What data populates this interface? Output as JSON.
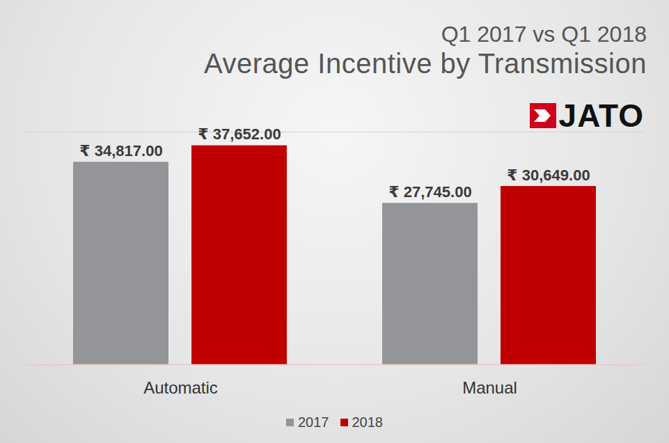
{
  "chart_data": {
    "type": "bar",
    "subtitle": "Q1 2017 vs Q1 2018",
    "title": "Average Incentive by Transmission",
    "brand": "JATO",
    "categories": [
      "Automatic",
      "Manual"
    ],
    "series": [
      {
        "name": "2017",
        "color": "#939598",
        "values": [
          34817,
          27745
        ],
        "value_labels": [
          "₹ 34,817.00",
          "₹ 27,745.00"
        ]
      },
      {
        "name": "2018",
        "color": "#c00000",
        "values": [
          37652,
          30649
        ],
        "value_labels": [
          "₹ 37,652.00",
          "₹ 30,649.00"
        ]
      }
    ],
    "ylim": [
      0,
      40000
    ],
    "yticks": [],
    "grid": false,
    "data_labels": true,
    "tick_labels": "x",
    "legend": "bottom"
  }
}
